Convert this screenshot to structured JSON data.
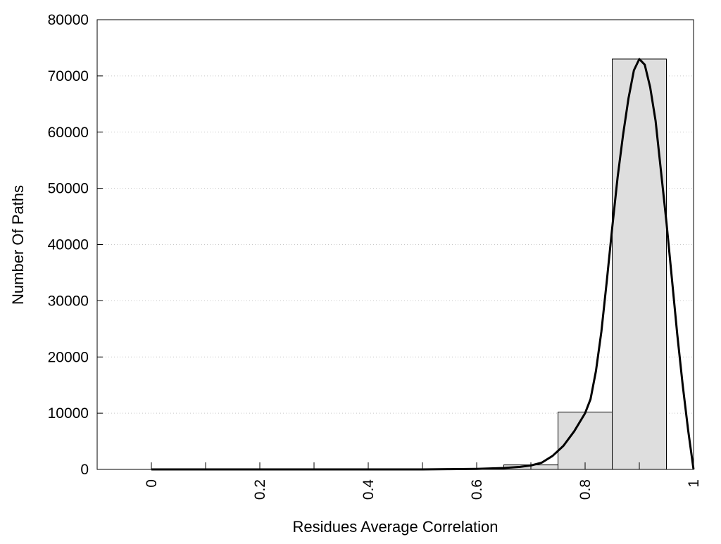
{
  "chart_data": {
    "type": "bar",
    "title": "",
    "xlabel": "Residues Average Correlation",
    "ylabel": "Number Of Paths",
    "xlim": [
      -0.1,
      1.0
    ],
    "ylim": [
      0,
      80000
    ],
    "x_ticks": [
      0,
      0.2,
      0.4,
      0.6,
      0.8,
      1
    ],
    "x_minor_ticks": [
      0.1,
      0.3,
      0.5,
      0.7,
      0.9
    ],
    "x_tick_labels": [
      "0",
      "0.2",
      "0.4",
      "0.6",
      "0.8",
      "1"
    ],
    "y_ticks": [
      0,
      10000,
      20000,
      30000,
      40000,
      50000,
      60000,
      70000,
      80000
    ],
    "y_tick_labels": [
      "0",
      "10000",
      "20000",
      "30000",
      "40000",
      "50000",
      "60000",
      "70000",
      "80000"
    ],
    "grid": "horizontal dotted",
    "bin_width": 0.1,
    "bars": [
      {
        "x": 0.0,
        "value": 0
      },
      {
        "x": 0.1,
        "value": 0
      },
      {
        "x": 0.2,
        "value": 0
      },
      {
        "x": 0.3,
        "value": 0
      },
      {
        "x": 0.4,
        "value": 0
      },
      {
        "x": 0.5,
        "value": 30
      },
      {
        "x": 0.6,
        "value": 120
      },
      {
        "x": 0.7,
        "value": 800
      },
      {
        "x": 0.8,
        "value": 10200
      },
      {
        "x": 0.9,
        "value": 73000
      }
    ],
    "series": [
      {
        "type": "line",
        "x": [
          0.0,
          0.5,
          0.55,
          0.6,
          0.62,
          0.65,
          0.68,
          0.7,
          0.72,
          0.74,
          0.76,
          0.78,
          0.8,
          0.81,
          0.82,
          0.83,
          0.84,
          0.85,
          0.86,
          0.87,
          0.88,
          0.89,
          0.9,
          0.91,
          0.92,
          0.93,
          0.94,
          0.95,
          0.96,
          0.97,
          0.98,
          0.99,
          1.0
        ],
        "y": [
          0,
          0,
          50,
          100,
          150,
          250,
          450,
          700,
          1200,
          2400,
          4200,
          6800,
          10000,
          12500,
          17500,
          24500,
          33500,
          43000,
          52000,
          59500,
          66000,
          71000,
          73000,
          72000,
          68000,
          62000,
          53000,
          44000,
          34000,
          24000,
          15000,
          7000,
          0
        ],
        "color": "#000000"
      }
    ],
    "bar_fill": "#dedede",
    "bar_stroke": "#000000"
  }
}
